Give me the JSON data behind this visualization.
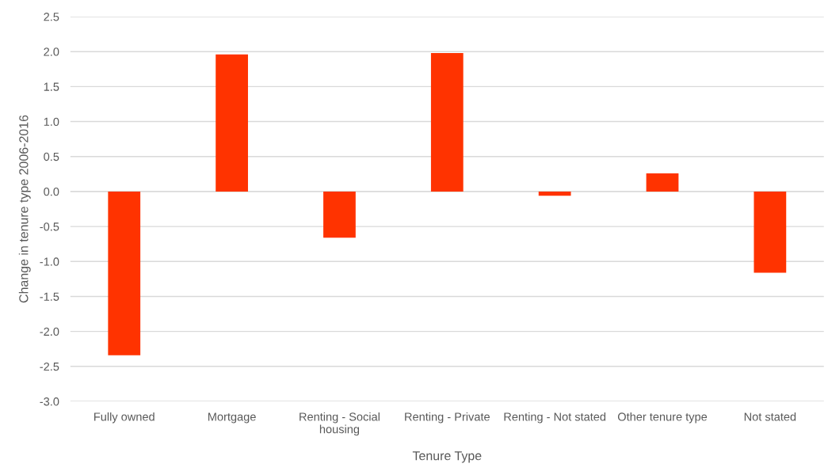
{
  "chart_data": {
    "type": "bar",
    "categories": [
      "Fully owned",
      "Mortgage",
      "Renting - Social housing",
      "Renting - Private",
      "Renting - Not stated",
      "Other tenure type",
      "Not stated"
    ],
    "values": [
      -2.34,
      1.96,
      -0.66,
      1.98,
      -0.06,
      0.26,
      -1.16
    ],
    "color": "#ff3300",
    "xlabel": "Tenure Type",
    "ylabel": "Change in tenure type 2006-2016",
    "ylim": [
      -3.0,
      2.5
    ],
    "yticks": [
      {
        "value": -3.0,
        "label": "-3.0"
      },
      {
        "value": -2.5,
        "label": "-2.5"
      },
      {
        "value": -2.0,
        "label": "-2.0"
      },
      {
        "value": -1.5,
        "label": "-1.5"
      },
      {
        "value": -1.0,
        "label": "-1.0"
      },
      {
        "value": -0.5,
        "label": "-0.5"
      },
      {
        "value": 0.0,
        "label": "0.0"
      },
      {
        "value": 0.5,
        "label": "0.5"
      },
      {
        "value": 1.0,
        "label": "1.0"
      },
      {
        "value": 1.5,
        "label": "1.5"
      },
      {
        "value": 2.0,
        "label": "2.0"
      },
      {
        "value": 2.5,
        "label": "2.5"
      }
    ],
    "grid": "y"
  }
}
